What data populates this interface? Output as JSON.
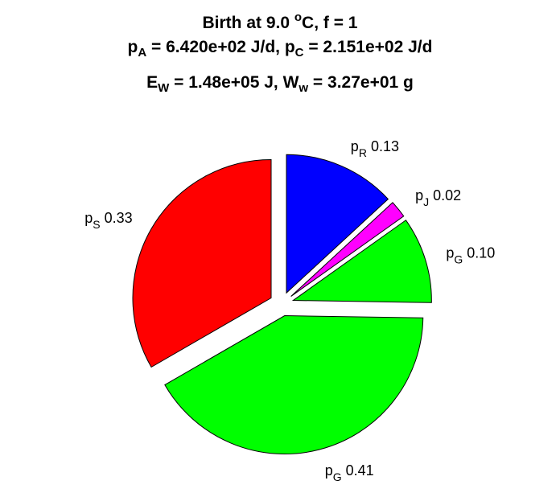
{
  "chart_data": {
    "type": "pie",
    "title": {
      "line1": {
        "text": "Birth at 9.0 ",
        "sup": "o",
        "rest": "C, f = 1"
      },
      "line2": {
        "a_base": "p",
        "a_sub": "A",
        "a_val": " = 6.420e+02 J/d, ",
        "c_base": "p",
        "c_sub": "C",
        "c_val": " = 2.151e+02 J/d"
      },
      "line3": {
        "e_base": "E",
        "e_sub": "W",
        "e_val": " = 1.48e+05 J, ",
        "w_base": "W",
        "w_sub": "w",
        "w_val": " = 3.27e+01 g"
      }
    },
    "slices": [
      {
        "base": "p",
        "sub": "R",
        "value": 0.13,
        "label_value": "0.13",
        "color": "#0000ff"
      },
      {
        "base": "p",
        "sub": "J",
        "value": 0.02,
        "label_value": "0.02",
        "color": "#ff00ff"
      },
      {
        "base": "p",
        "sub": "G",
        "value": 0.1,
        "label_value": "0.10",
        "color": "#00ff00"
      },
      {
        "base": "p",
        "sub": "G",
        "value": 0.41,
        "label_value": "0.41",
        "color": "#00ff00"
      },
      {
        "base": "p",
        "sub": "S",
        "value": 0.33,
        "label_value": "0.33",
        "color": "#ff0000"
      }
    ]
  }
}
